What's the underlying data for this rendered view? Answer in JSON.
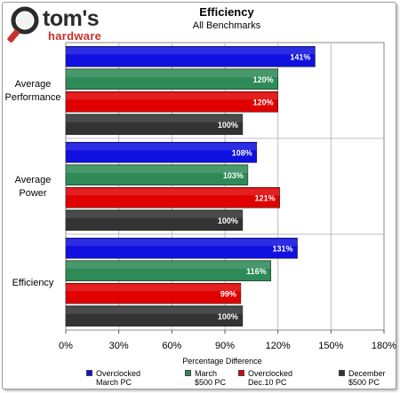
{
  "header": {
    "logo_word_1": "tom's",
    "logo_word_2": "hardware",
    "title": "Efficiency",
    "subtitle": "All Benchmarks"
  },
  "chart_data": {
    "type": "bar",
    "orientation": "horizontal",
    "title": "Efficiency",
    "subtitle": "All Benchmarks",
    "xlabel": "Percentage Difference",
    "ylabel": "",
    "xlim": [
      0,
      180
    ],
    "x_ticks": [
      "0%",
      "30%",
      "60%",
      "90%",
      "120%",
      "150%",
      "180%"
    ],
    "grid": true,
    "legend_position": "bottom",
    "categories": [
      [
        "Average",
        "Performance"
      ],
      [
        "Average",
        "Power"
      ],
      [
        "Efficiency"
      ]
    ],
    "series": [
      {
        "name": "Overclocked\nMarch PC",
        "color": "#1010e0",
        "values": [
          141,
          108,
          131
        ],
        "labels": [
          "141%",
          "108%",
          "131%"
        ]
      },
      {
        "name": "March\n$500 PC",
        "color": "#2e8b57",
        "values": [
          120,
          103,
          116
        ],
        "labels": [
          "120%",
          "103%",
          "116%"
        ]
      },
      {
        "name": "Overclocked\nDec.10 PC",
        "color": "#e00000",
        "values": [
          120,
          121,
          99
        ],
        "labels": [
          "120%",
          "121%",
          "99%"
        ]
      },
      {
        "name": "December\n$500 PC",
        "color": "#333333",
        "values": [
          100,
          100,
          100
        ],
        "labels": [
          "100%",
          "100%",
          "100%"
        ]
      }
    ]
  }
}
